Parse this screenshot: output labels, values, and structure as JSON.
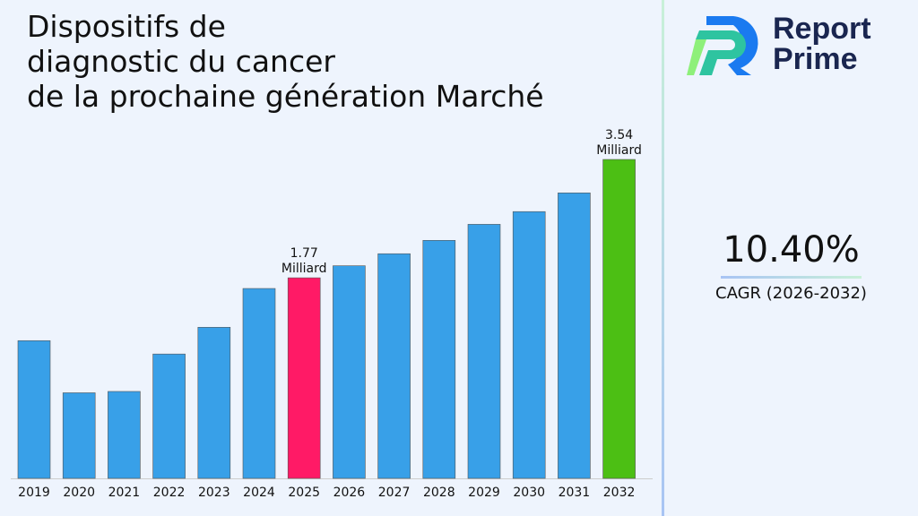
{
  "chart_data": {
    "type": "bar",
    "title": "Dispositifs de\ndiagnostic du cancer\nde la prochaine génération Marché",
    "categories": [
      "2019",
      "2020",
      "2021",
      "2022",
      "2023",
      "2024",
      "2025",
      "2026",
      "2027",
      "2028",
      "2029",
      "2030",
      "2031",
      "2032"
    ],
    "values": [
      0.83,
      0.05,
      0.07,
      0.63,
      1.03,
      1.61,
      1.77,
      1.95,
      2.13,
      2.33,
      2.57,
      2.76,
      3.04,
      3.54
    ],
    "unit": "Milliard",
    "data_labels": [
      {
        "index": 6,
        "value": "1.77",
        "unit": "Milliard"
      },
      {
        "index": 13,
        "value": "3.54",
        "unit": "Milliard"
      }
    ],
    "ylim": [
      -1.23,
      3.54
    ],
    "grid": false,
    "colors": {
      "default": "#38a0e8",
      "highlight_2025": "#ff1a66",
      "highlight_2032": "#4cbf14"
    }
  },
  "logo": {
    "text_line1": "Report",
    "text_line2": "Prime"
  },
  "cagr": {
    "value": "10.40%",
    "label": "CAGR (2026-2032)"
  }
}
